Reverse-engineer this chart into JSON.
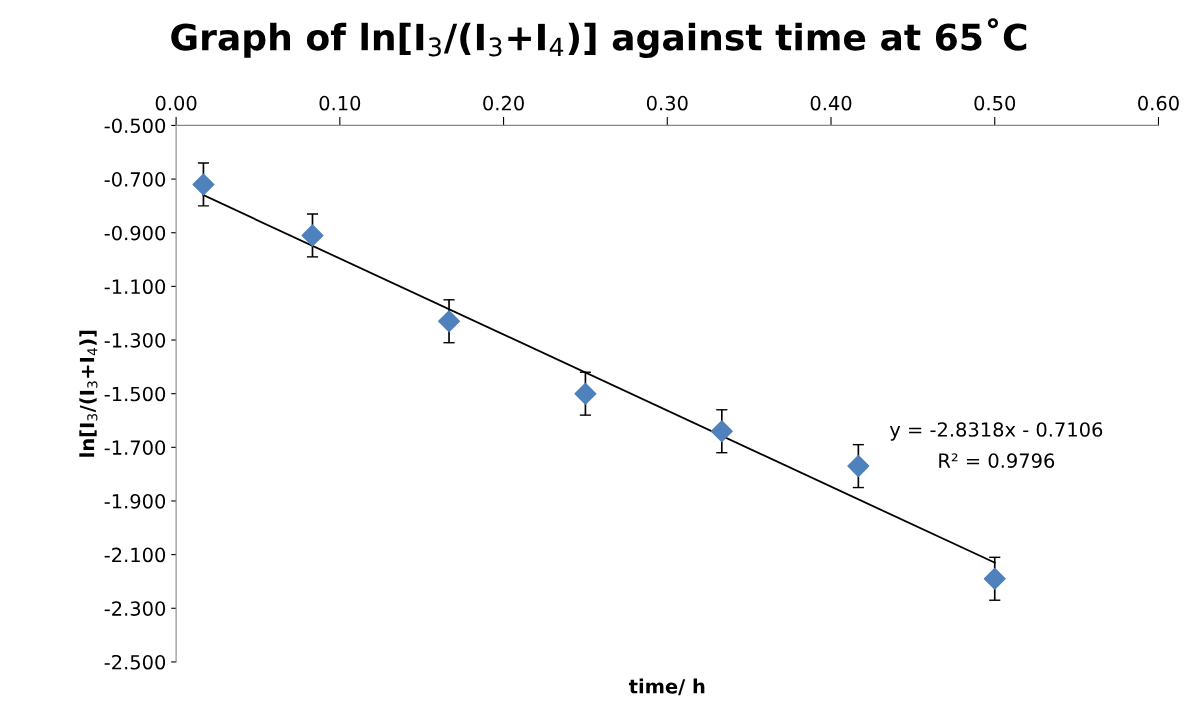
{
  "chart_data": {
    "type": "scatter",
    "title": "Graph of ln[I$_{3}$/(I$_{3}$+I$_{4}$)] against time at 65˚C",
    "xlabel": "time/ h",
    "ylabel": "ln[I$_{3}$/(I$_{3}$+I$_{4}$)]",
    "xlim": [
      0,
      0.6
    ],
    "xticks": [
      {
        "value": 0,
        "label": "0.00"
      },
      {
        "value": 0.1,
        "label": "0.10"
      },
      {
        "value": 0.2,
        "label": "0.20"
      },
      {
        "value": 0.3,
        "label": "0.30"
      },
      {
        "value": 0.4,
        "label": "0.40"
      },
      {
        "value": 0.5,
        "label": "0.50"
      },
      {
        "value": 0.6,
        "label": "0.60"
      }
    ],
    "ylim": [
      -2.5,
      -0.5
    ],
    "yticks": [
      {
        "value": -0.5,
        "label": "-0.500"
      },
      {
        "value": -0.7,
        "label": "-0.700"
      },
      {
        "value": -0.9,
        "label": "-0.900"
      },
      {
        "value": -1.1,
        "label": "-1.100"
      },
      {
        "value": -1.3,
        "label": "-1.300"
      },
      {
        "value": -1.5,
        "label": "-1.500"
      },
      {
        "value": -1.7,
        "label": "-1.700"
      },
      {
        "value": -1.9,
        "label": "-1.900"
      },
      {
        "value": -2.1,
        "label": "-2.100"
      },
      {
        "value": -2.3,
        "label": "-2.300"
      },
      {
        "value": -2.5,
        "label": "-2.500"
      }
    ],
    "grid": false,
    "legend": false,
    "series": [
      {
        "marker": "diamond",
        "color": "#4f81bd",
        "x": [
          0.0167,
          0.0833,
          0.1667,
          0.25,
          0.3333,
          0.4167,
          0.5
        ],
        "values": [
          -0.72,
          -0.91,
          -1.23,
          -1.5,
          -1.64,
          -1.77,
          -2.19
        ],
        "errors": [
          0.08,
          0.08,
          0.08,
          0.08,
          0.08,
          0.08,
          0.08
        ]
      },
      {
        "type": "line",
        "color": "#000000",
        "x": [
          0.0167,
          0.5
        ],
        "values": [
          -0.76,
          -2.13
        ]
      }
    ],
    "annotations": [
      "y = -2.8318x - 0.7106",
      "R² = 0.9796"
    ]
  }
}
